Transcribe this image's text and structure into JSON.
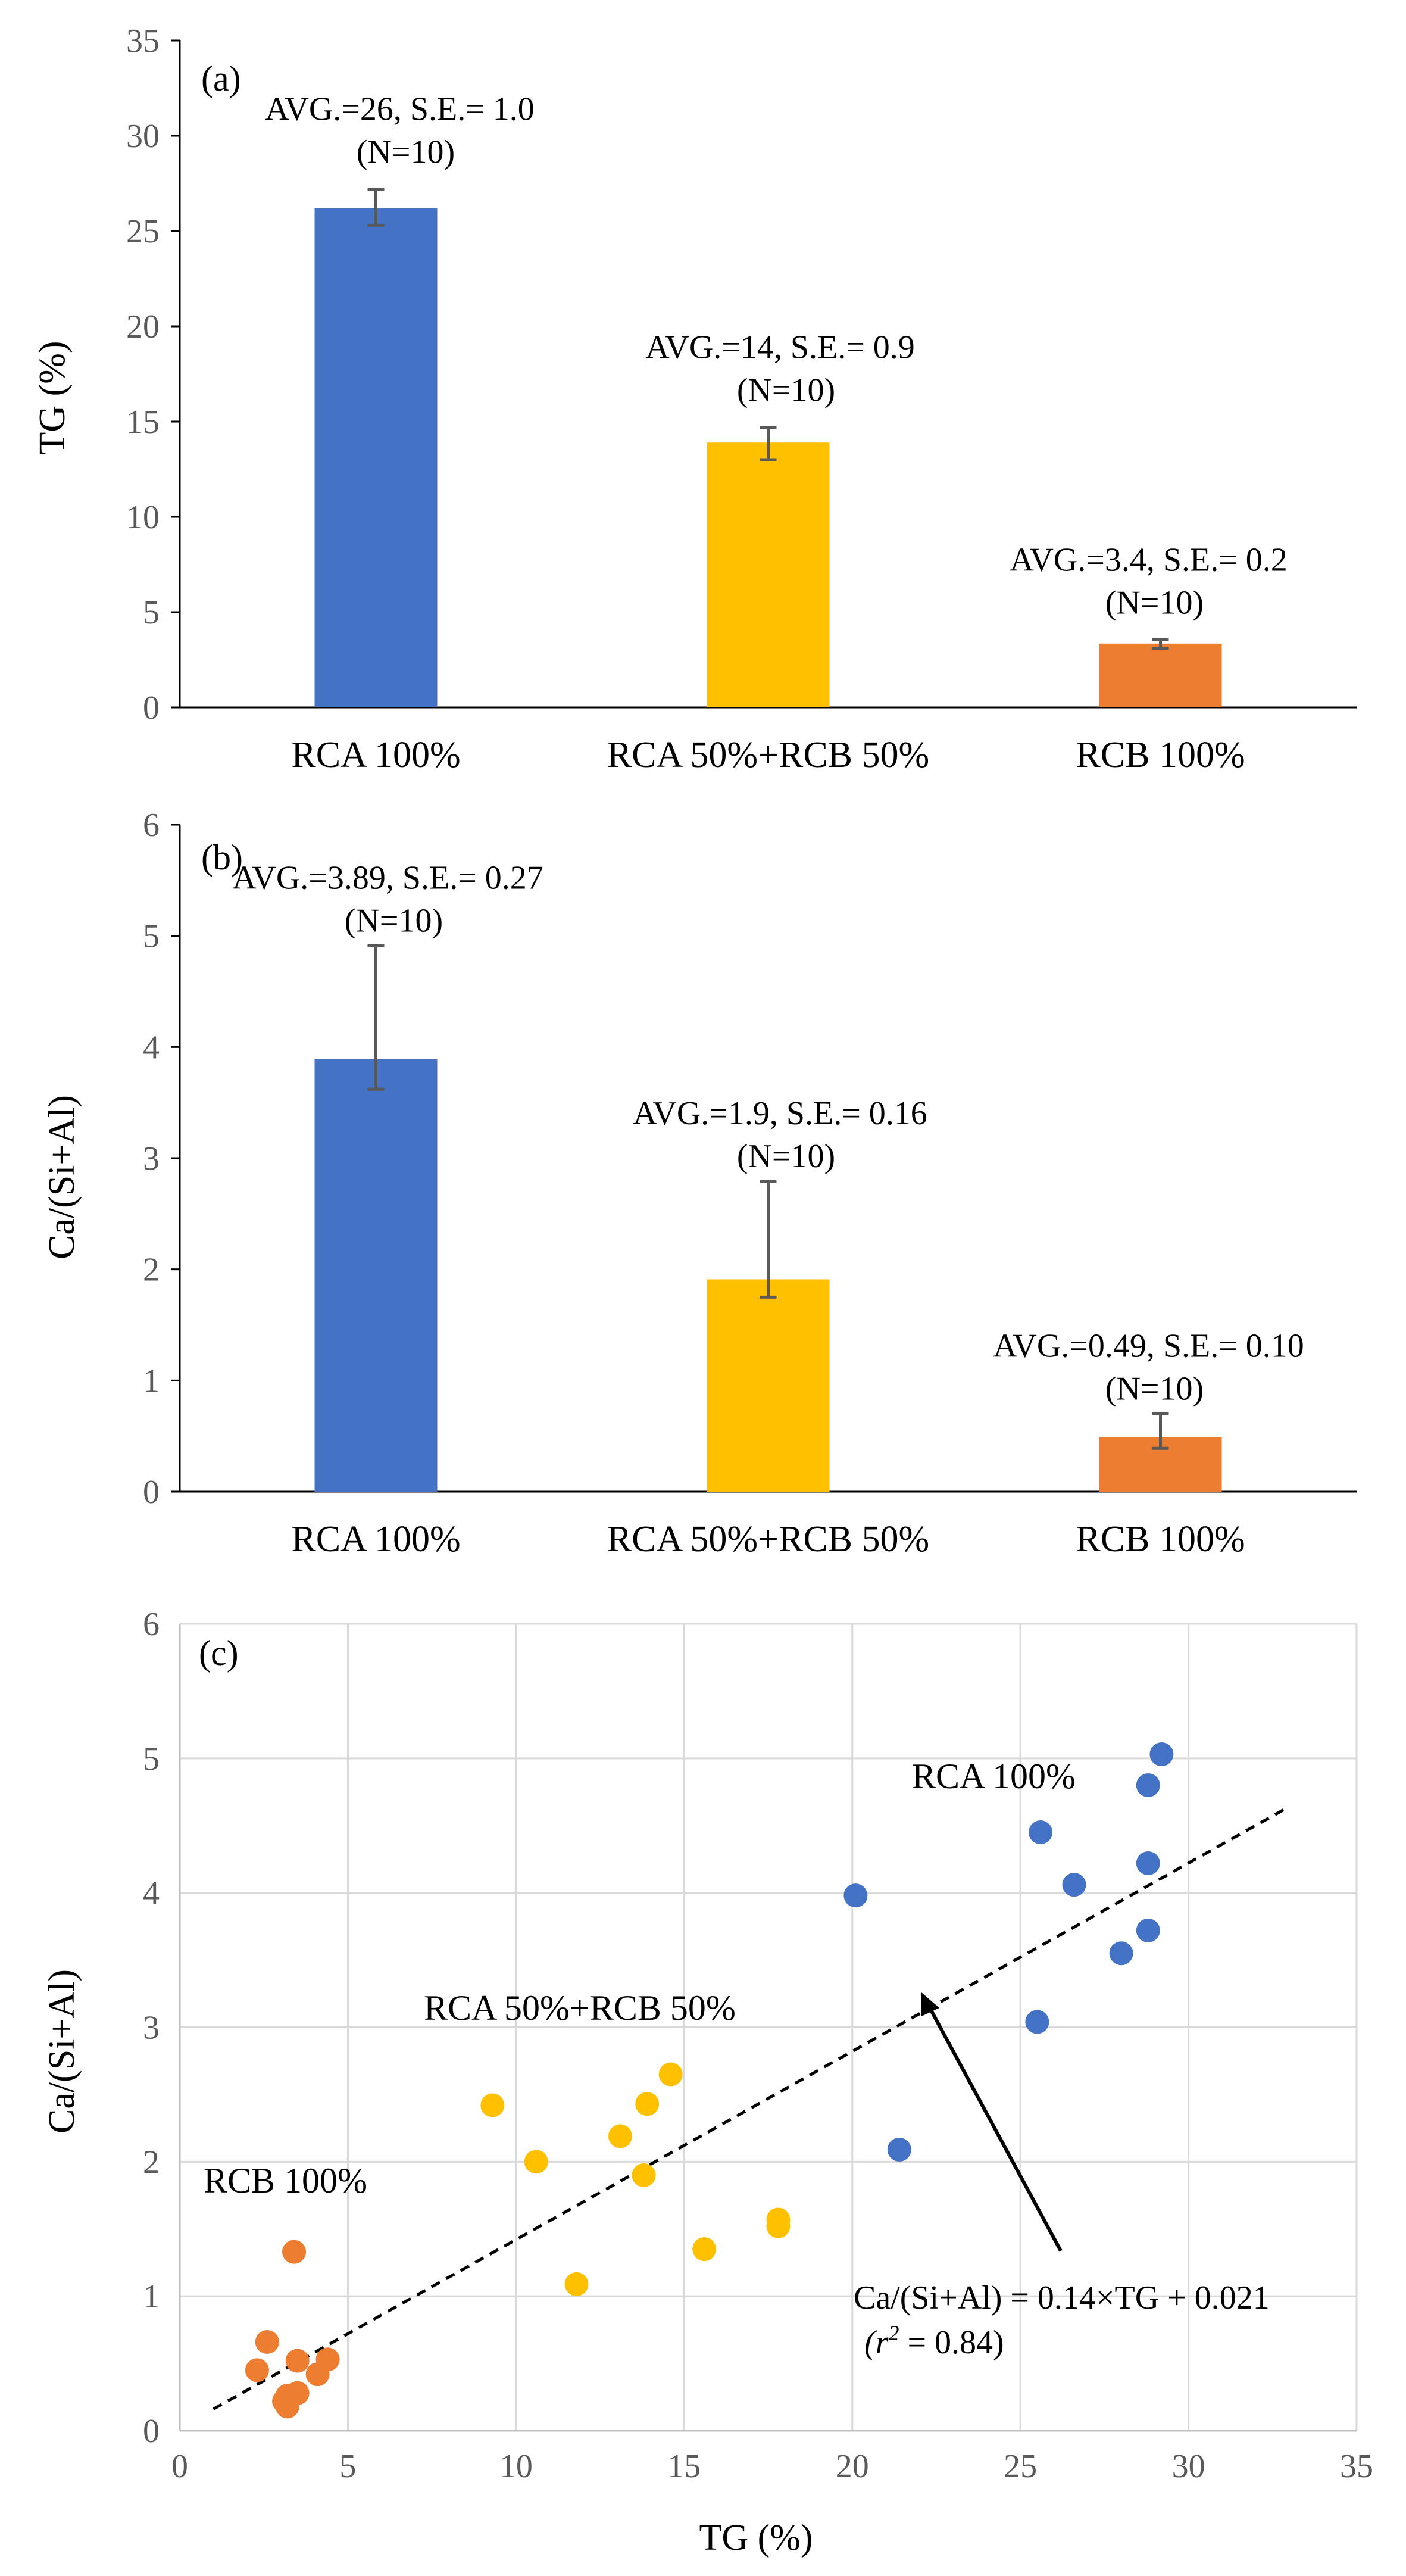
{
  "chart_data": [
    {
      "type": "bar",
      "panel_label": "(a)",
      "ylabel": "TG (%)",
      "ylim": [
        0,
        35
      ],
      "ytick_step": 5,
      "grid": false,
      "categories": [
        "RCA 100%",
        "RCA 50%+RCB 50%",
        "RCB 100%"
      ],
      "values": [
        26.2,
        13.9,
        3.35
      ],
      "error_low": [
        25.3,
        13.0,
        3.1
      ],
      "error_high": [
        27.2,
        14.7,
        3.55
      ],
      "colors": [
        "#4472C4",
        "#FFC000",
        "#ED7D31"
      ],
      "annotations": [
        {
          "line1": "AVG.=26, S.E.= 1.0",
          "line2": "(N=10)"
        },
        {
          "line1": "AVG.=14, S.E.= 0.9",
          "line2": "(N=10)"
        },
        {
          "line1": "AVG.=3.4, S.E.= 0.2",
          "line2": "(N=10)"
        }
      ]
    },
    {
      "type": "bar",
      "panel_label": "(b)",
      "ylabel": "Ca/(Si+Al)",
      "ylim": [
        0,
        6
      ],
      "ytick_step": 1,
      "grid": false,
      "categories": [
        "RCA 100%",
        "RCA 50%+RCB 50%",
        "RCB 100%"
      ],
      "values": [
        3.89,
        1.91,
        0.49
      ],
      "error_low": [
        3.62,
        1.75,
        0.39
      ],
      "error_high": [
        4.91,
        2.79,
        0.7
      ],
      "colors": [
        "#4472C4",
        "#FFC000",
        "#ED7D31"
      ],
      "annotations": [
        {
          "line1": "AVG.=3.89, S.E.= 0.27",
          "line2": "(N=10)"
        },
        {
          "line1": "AVG.=1.9, S.E.= 0.16",
          "line2": "(N=10)"
        },
        {
          "line1": "AVG.=0.49, S.E.= 0.10",
          "line2": "(N=10)"
        }
      ]
    },
    {
      "type": "scatter",
      "panel_label": "(c)",
      "xlabel": "TG (%)",
      "ylabel": "Ca/(Si+Al)",
      "xlim": [
        0,
        35
      ],
      "ylim": [
        0,
        6
      ],
      "xtick_step": 5,
      "ytick_step": 1,
      "grid": true,
      "series": [
        {
          "name": "RCA 100%",
          "color": "#4472C4",
          "points": [
            [
              29.2,
              5.03
            ],
            [
              28.8,
              4.8
            ],
            [
              25.6,
              4.45
            ],
            [
              26.6,
              4.06
            ],
            [
              28.8,
              4.22
            ],
            [
              20.1,
              3.98
            ],
            [
              28.8,
              3.72
            ],
            [
              28.0,
              3.55
            ],
            [
              25.5,
              3.04
            ],
            [
              21.4,
              2.09
            ]
          ]
        },
        {
          "name": "RCA 50%+RCB 50%",
          "color": "#FFC000",
          "points": [
            [
              9.3,
              2.42
            ],
            [
              10.6,
              2.0
            ],
            [
              13.1,
              2.19
            ],
            [
              13.9,
              2.43
            ],
            [
              14.6,
              2.65
            ],
            [
              13.8,
              1.9
            ],
            [
              11.8,
              1.09
            ],
            [
              15.6,
              1.35
            ],
            [
              17.8,
              1.57
            ],
            [
              17.8,
              1.52
            ]
          ]
        },
        {
          "name": "RCB 100%",
          "color": "#ED7D31",
          "points": [
            [
              3.4,
              1.33
            ],
            [
              2.6,
              0.66
            ],
            [
              2.3,
              0.45
            ],
            [
              3.5,
              0.52
            ],
            [
              4.4,
              0.53
            ],
            [
              4.1,
              0.42
            ],
            [
              3.5,
              0.28
            ],
            [
              3.2,
              0.26
            ],
            [
              3.2,
              0.18
            ],
            [
              3.1,
              0.22
            ]
          ]
        }
      ],
      "trendline": {
        "slope": 0.14,
        "intercept": 0.021,
        "x_range": [
          1,
          33
        ],
        "equation": "Ca/(Si+Al) = 0.14×TG + 0.021",
        "r2_prefix": "(r",
        "r2_exp": "2",
        "r2_suffix": " = 0.84)"
      }
    }
  ]
}
